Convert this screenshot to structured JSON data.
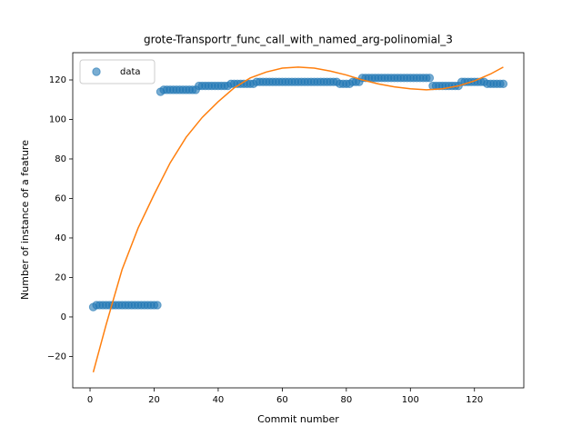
{
  "chart_data": {
    "type": "scatter",
    "title": "grote-Transportr_func_call_with_named_arg-polinomial_3",
    "xlabel": "Commit number",
    "ylabel": "Number of instance of a feature",
    "xlim": [
      -5.4,
      135.4
    ],
    "ylim": [
      -35.9,
      133.8
    ],
    "xticks": [
      0,
      20,
      40,
      60,
      80,
      100,
      120
    ],
    "yticks": [
      {
        "value": -20,
        "label": "−20"
      },
      0,
      20,
      40,
      60,
      80,
      100,
      120
    ],
    "legend": "upper left",
    "grid": false,
    "series": [
      {
        "name": "data",
        "type": "scatter",
        "color": "#1f77b4",
        "x": [
          1,
          2,
          3,
          4,
          5,
          6,
          7,
          8,
          9,
          10,
          11,
          12,
          13,
          14,
          15,
          16,
          17,
          18,
          19,
          20,
          21,
          22,
          23,
          24,
          25,
          26,
          27,
          28,
          29,
          30,
          31,
          32,
          33,
          34,
          35,
          36,
          37,
          38,
          39,
          40,
          41,
          42,
          43,
          44,
          45,
          46,
          47,
          48,
          49,
          50,
          51,
          52,
          53,
          54,
          55,
          56,
          57,
          58,
          59,
          60,
          61,
          62,
          63,
          64,
          65,
          66,
          67,
          68,
          69,
          70,
          71,
          72,
          73,
          74,
          75,
          76,
          77,
          78,
          79,
          80,
          81,
          82,
          83,
          84,
          85,
          86,
          87,
          88,
          89,
          90,
          91,
          92,
          93,
          94,
          95,
          96,
          97,
          98,
          99,
          100,
          101,
          102,
          103,
          104,
          105,
          106,
          107,
          108,
          109,
          110,
          111,
          112,
          113,
          114,
          115,
          116,
          117,
          118,
          119,
          120,
          121,
          122,
          123,
          124,
          125,
          126,
          127,
          128,
          129
        ],
        "values": [
          5,
          6,
          6,
          6,
          6,
          6,
          6,
          6,
          6,
          6,
          6,
          6,
          6,
          6,
          6,
          6,
          6,
          6,
          6,
          6,
          6,
          114,
          115,
          115,
          115,
          115,
          115,
          115,
          115,
          115,
          115,
          115,
          115,
          117,
          117,
          117,
          117,
          117,
          117,
          117,
          117,
          117,
          117,
          118,
          118,
          118,
          118,
          118,
          118,
          118,
          118,
          119,
          119,
          119,
          119,
          119,
          119,
          119,
          119,
          119,
          119,
          119,
          119,
          119,
          119,
          119,
          119,
          119,
          119,
          119,
          119,
          119,
          119,
          119,
          119,
          119,
          119,
          118,
          118,
          118,
          118,
          119,
          119,
          119,
          121,
          121,
          121,
          121,
          121,
          121,
          121,
          121,
          121,
          121,
          121,
          121,
          121,
          121,
          121,
          121,
          121,
          121,
          121,
          121,
          121,
          121,
          117,
          117,
          117,
          117,
          117,
          117,
          117,
          117,
          117,
          119,
          119,
          119,
          119,
          119,
          119,
          119,
          119,
          118,
          118,
          118,
          118,
          118,
          118
        ]
      },
      {
        "type": "line",
        "color": "#ff7f0e",
        "x": [
          1,
          5,
          10,
          15,
          20,
          25,
          30,
          35,
          40,
          45,
          50,
          55,
          60,
          65,
          70,
          75,
          80,
          85,
          90,
          95,
          100,
          105,
          110,
          115,
          120,
          125,
          129
        ],
        "values": [
          -28,
          -4,
          24,
          45,
          62,
          78,
          91,
          101,
          109,
          116,
          121,
          124,
          126,
          126.5,
          126,
          124.5,
          122.5,
          120,
          118,
          116.5,
          115.5,
          115,
          115.5,
          117,
          119.5,
          123,
          126.5
        ]
      }
    ]
  }
}
